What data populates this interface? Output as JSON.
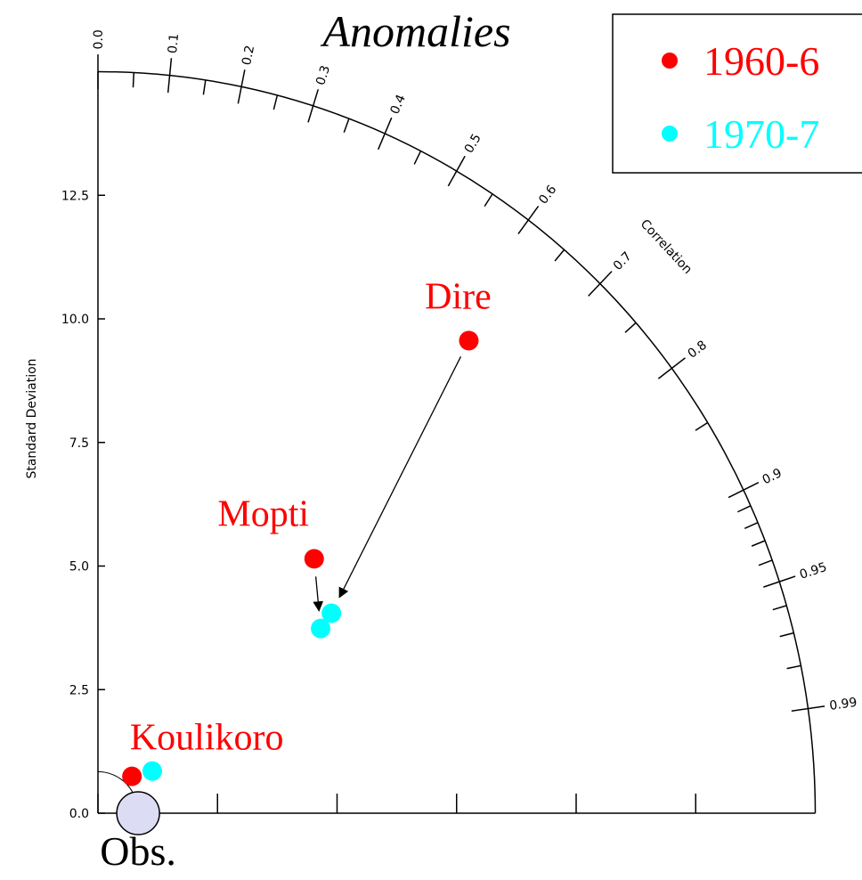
{
  "chart_data": {
    "type": "taylor",
    "title": "Anomalies",
    "ylabel": "Standard Deviation",
    "corr_label": "Correlation",
    "ylim": [
      0,
      15
    ],
    "yticks": [
      {
        "value": 0,
        "label": "0.0"
      },
      2.5,
      {
        "value": 5,
        "label": "5.0"
      },
      7.5,
      {
        "value": 10,
        "label": "10.0"
      },
      12.5
    ],
    "corr_ticks": [
      {
        "value": 0,
        "label": "0.0"
      },
      0.1,
      0.2,
      0.3,
      0.4,
      0.5,
      0.6,
      0.7,
      0.8,
      0.9,
      0.95,
      0.99
    ],
    "corr_minor_ticks": [
      0.05,
      0.15,
      0.25,
      0.35,
      0.45,
      0.55,
      0.65,
      0.75,
      0.85,
      0.91,
      0.92,
      0.93,
      0.94,
      0.96,
      0.97,
      0.98
    ],
    "categories": [
      "Koulikoro",
      "Mopti",
      "Dire"
    ],
    "category_color": "red",
    "series": [
      {
        "name": "1960-6",
        "color": "red",
        "std": [
          1.03,
          6.85,
          12.31
        ],
        "corr": [
          0.69,
          0.66,
          0.63
        ]
      },
      {
        "name": "1970-7",
        "color": "cyan",
        "std": [
          1.42,
          5.97,
          6.34
        ],
        "corr": [
          0.8,
          0.78,
          0.77
        ]
      }
    ],
    "reference": {
      "label": "Obs.",
      "std": 0.84,
      "color": "#dcdcf5"
    }
  }
}
